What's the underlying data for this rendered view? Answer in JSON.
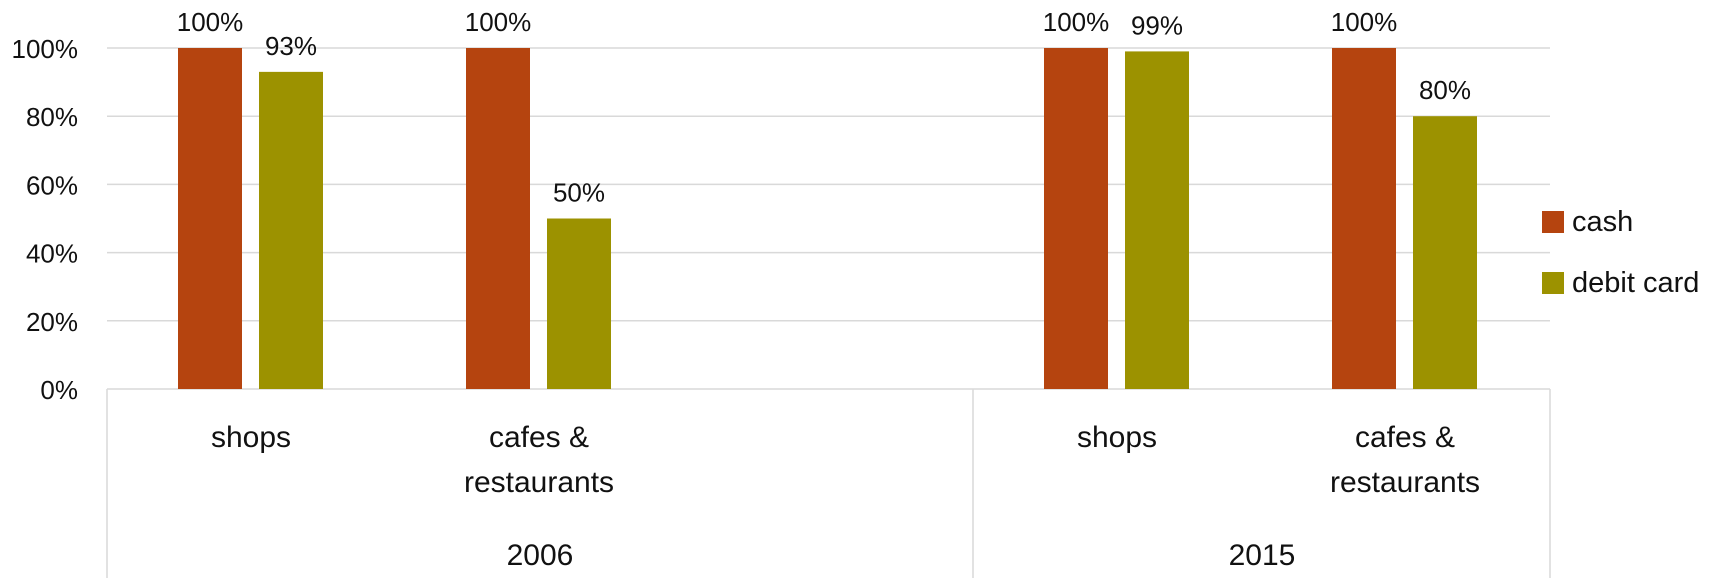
{
  "chart_data": {
    "type": "bar",
    "groups": [
      {
        "label": "2006",
        "categories": [
          "shops",
          "cafes & restaurants"
        ]
      },
      {
        "label": "2015",
        "categories": [
          "shops",
          "cafes & restaurants"
        ]
      }
    ],
    "categories": [
      "shops",
      "cafes & restaurants",
      "shops",
      "cafes & restaurants"
    ],
    "series": [
      {
        "name": "cash",
        "color": "#B5440F",
        "values": [
          100,
          100,
          100,
          100
        ]
      },
      {
        "name": "debit card",
        "color": "#9C9200",
        "values": [
          93,
          50,
          99,
          80
        ]
      }
    ],
    "data_labels": {
      "cash": [
        "100%",
        "100%",
        "100%",
        "100%"
      ],
      "debit card": [
        "93%",
        "50%",
        "99%",
        "80%"
      ]
    },
    "y_ticks": [
      "0%",
      "20%",
      "40%",
      "60%",
      "80%",
      "100%"
    ],
    "ylim": [
      0,
      100
    ],
    "grid": true,
    "legend": "right",
    "title": "",
    "xlabel": "",
    "ylabel": ""
  }
}
